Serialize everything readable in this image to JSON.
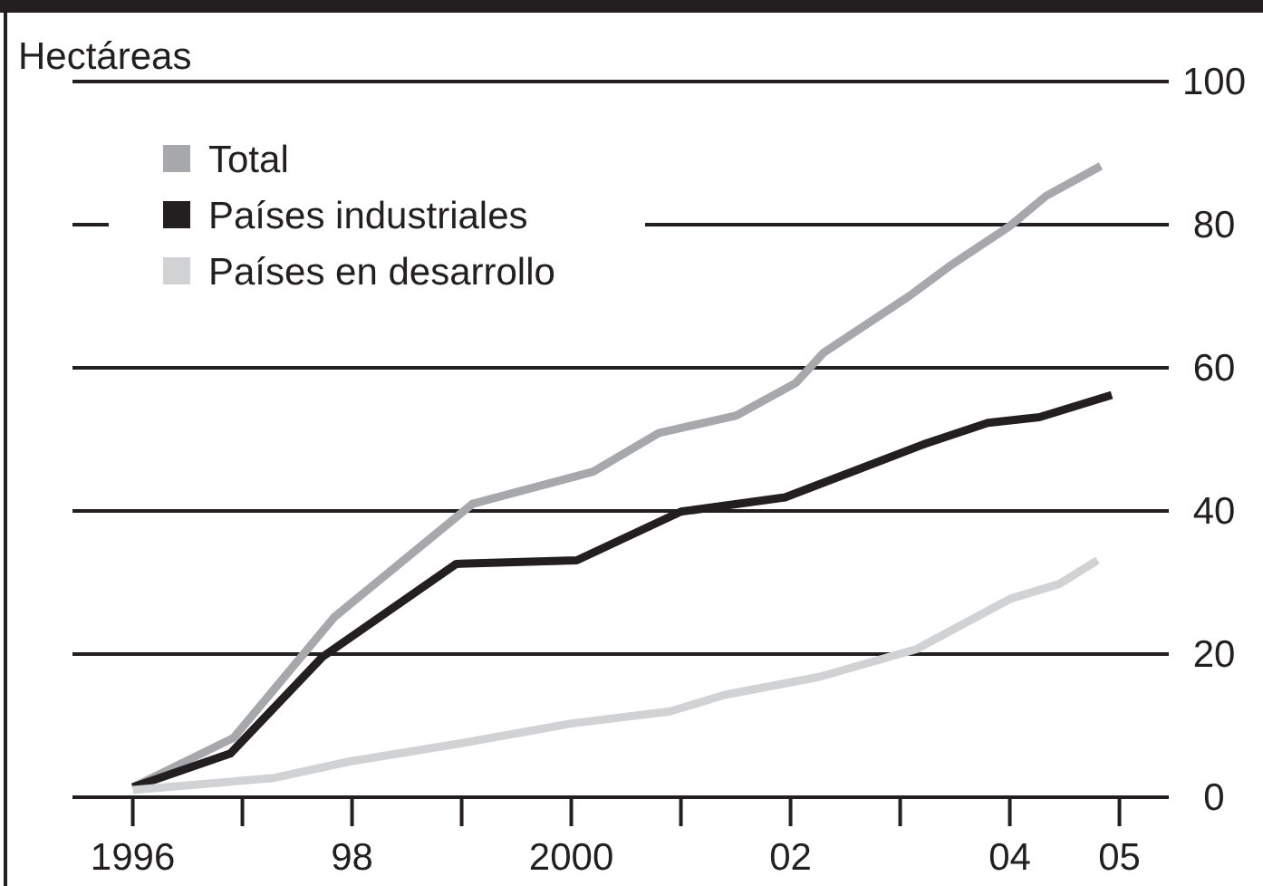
{
  "chart_data": {
    "type": "line",
    "ylabel": "Hectáreas",
    "xlim": [
      1995.45,
      2005.45
    ],
    "xticks": [
      {
        "value": 1996,
        "label": "1996"
      },
      {
        "value": 1997,
        "label": null
      },
      {
        "value": 1998,
        "label": "98"
      },
      {
        "value": 1999,
        "label": null
      },
      {
        "value": 2000,
        "label": "2000"
      },
      {
        "value": 2001,
        "label": null
      },
      {
        "value": 2002,
        "label": "02"
      },
      {
        "value": 2003,
        "label": null
      },
      {
        "value": 2004,
        "label": "04"
      },
      {
        "value": 2005,
        "label": "05"
      }
    ],
    "ylim": [
      0,
      100
    ],
    "yticks": [
      0,
      20,
      40,
      60,
      80,
      100
    ],
    "grid": "y",
    "legend": "top left",
    "line_style": "solid",
    "marker": "none",
    "series": [
      {
        "name": "Total",
        "color": "#a7a8ab",
        "x": [
          1996,
          1996.92,
          1997.84,
          1999.1,
          2000.2,
          2000.8,
          2001.5,
          2002.05,
          2002.3,
          2003.08,
          2003.45,
          2004.0,
          2004.33,
          2004.83
        ],
        "values": [
          1.4,
          8.3,
          25.2,
          41,
          45.5,
          50.9,
          53.3,
          57.9,
          62.1,
          70,
          74.2,
          79.8,
          84,
          88.2
        ]
      },
      {
        "name": "Países industriales",
        "color": "#231f20",
        "x": [
          1996,
          1996.89,
          1997.73,
          1998.95,
          2000.05,
          2001.0,
          2001.95,
          2003.23,
          2003.8,
          2004.27,
          2004.93
        ],
        "values": [
          1.4,
          6.1,
          19.6,
          32.6,
          33.1,
          39.9,
          41.9,
          49.4,
          52.3,
          53.1,
          56.2
        ]
      },
      {
        "name": "Países en desarrollo",
        "color": "#d1d2d4",
        "x": [
          1996,
          1997.29,
          1997.98,
          1998.98,
          2000,
          2000.9,
          2001.4,
          2002.26,
          2003.15,
          2004.0,
          2004.45,
          2004.8
        ],
        "values": [
          1.0,
          2.7,
          5.0,
          7.5,
          10.3,
          12.0,
          14.3,
          16.8,
          20.7,
          27.7,
          29.8,
          33.1
        ]
      }
    ]
  }
}
